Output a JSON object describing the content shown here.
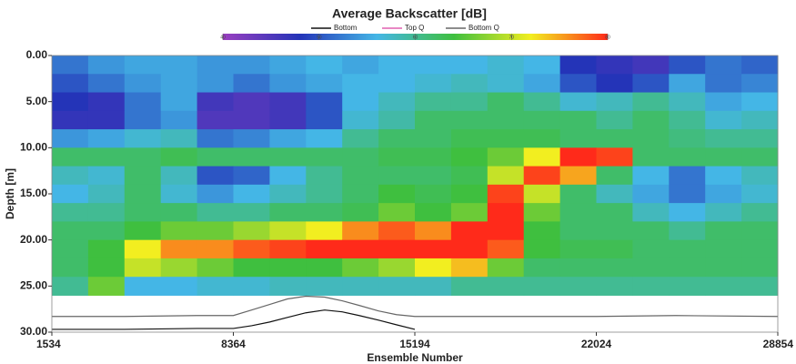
{
  "chart_data": {
    "type": "heatmap",
    "title": "Average Backscatter [dB]",
    "xlabel": "Ensemble Number",
    "ylabel": "Depth [m]",
    "xlim": [
      1534,
      28854
    ],
    "xticks": [
      1534,
      8364,
      15194,
      22024,
      28854
    ],
    "ylim": [
      0,
      30
    ],
    "yticks": [
      {
        "value": 0,
        "label": "0.00"
      },
      {
        "value": 5,
        "label": "5.00"
      },
      {
        "value": 10,
        "label": "10.00"
      },
      {
        "value": 15,
        "label": "15.00"
      },
      {
        "value": 20,
        "label": "20.00"
      },
      {
        "value": 25,
        "label": "25.00"
      },
      {
        "value": 30,
        "label": "30.00"
      }
    ],
    "y_inverted": true,
    "clim": [
      40,
      80
    ],
    "cticks": [
      40,
      50,
      60,
      70,
      80
    ],
    "colormap": [
      "#9a3fc0",
      "#2434b8",
      "#44b6e6",
      "#3fbf3f",
      "#f2ee20",
      "#ff2a1a"
    ],
    "x_edges": [
      1534,
      2900,
      4266,
      5632,
      6998,
      8364,
      9730,
      11096,
      12462,
      13828,
      15194,
      16560,
      17926,
      19292,
      20658,
      22024,
      23390,
      24756,
      26122,
      27488,
      28854
    ],
    "depth_edges": [
      0,
      2,
      4,
      6,
      8,
      10,
      12,
      14,
      16,
      18,
      20,
      22,
      24,
      26
    ],
    "values": [
      [
        52,
        54,
        55,
        55,
        54,
        54,
        55,
        56,
        55,
        56,
        56,
        56,
        57,
        56,
        48,
        47,
        46,
        50,
        52,
        51
      ],
      [
        50,
        52,
        54,
        55,
        54,
        52,
        54,
        55,
        56,
        56,
        57,
        58,
        57,
        55,
        50,
        48,
        50,
        55,
        52,
        53
      ],
      [
        48,
        47,
        52,
        55,
        46,
        45,
        46,
        50,
        56,
        58,
        60,
        60,
        62,
        60,
        57,
        58,
        60,
        58,
        55,
        56
      ],
      [
        47,
        47,
        52,
        54,
        45,
        45,
        46,
        50,
        57,
        59,
        62,
        62,
        62,
        62,
        62,
        60,
        62,
        60,
        57,
        58
      ],
      [
        54,
        55,
        57,
        58,
        52,
        53,
        55,
        56,
        60,
        62,
        62,
        63,
        63,
        63,
        62,
        62,
        62,
        61,
        60,
        60
      ],
      [
        62,
        62,
        62,
        63,
        62,
        62,
        62,
        62,
        62,
        63,
        63,
        64,
        66,
        72,
        80,
        79,
        62,
        62,
        62,
        62
      ],
      [
        58,
        57,
        62,
        58,
        50,
        51,
        56,
        60,
        62,
        62,
        62,
        63,
        70,
        79,
        75,
        62,
        56,
        52,
        56,
        58
      ],
      [
        56,
        58,
        62,
        57,
        54,
        56,
        58,
        60,
        62,
        64,
        63,
        64,
        79,
        70,
        62,
        58,
        55,
        52,
        55,
        57
      ],
      [
        60,
        60,
        62,
        62,
        60,
        60,
        62,
        62,
        63,
        66,
        64,
        66,
        80,
        66,
        62,
        62,
        58,
        56,
        58,
        60
      ],
      [
        62,
        62,
        64,
        66,
        66,
        68,
        70,
        72,
        76,
        78,
        76,
        80,
        80,
        64,
        62,
        62,
        62,
        60,
        62,
        62
      ],
      [
        62,
        64,
        72,
        76,
        76,
        78,
        79,
        80,
        80,
        80,
        80,
        80,
        78,
        64,
        63,
        63,
        62,
        62,
        62,
        62
      ],
      [
        62,
        64,
        70,
        68,
        66,
        64,
        64,
        64,
        66,
        68,
        72,
        74,
        66,
        62,
        62,
        62,
        62,
        62,
        62,
        62
      ],
      [
        60,
        66,
        56,
        56,
        57,
        57,
        58,
        58,
        58,
        58,
        58,
        60,
        60,
        60,
        60,
        60,
        60,
        60,
        60,
        60
      ]
    ],
    "line_x": [
      1534,
      4266,
      6998,
      8364,
      9050,
      9730,
      10400,
      11096,
      11800,
      12462,
      13100,
      13828,
      14500,
      15194,
      16560,
      19292,
      22024,
      25000,
      28854
    ],
    "series": [
      {
        "name": "Bottom",
        "color": "#111111",
        "values": [
          29.7,
          29.7,
          29.6,
          29.6,
          29.3,
          28.9,
          28.4,
          27.9,
          27.6,
          27.8,
          28.2,
          28.7,
          29.2,
          29.7,
          null,
          null,
          null,
          null,
          null
        ]
      },
      {
        "name": "Top Q",
        "color": "#e060b0",
        "values": [
          null,
          null,
          null,
          null,
          null,
          null,
          null,
          null,
          null,
          null,
          null,
          null,
          null,
          null,
          null,
          null,
          null,
          null,
          null
        ]
      },
      {
        "name": "Bottom Q",
        "color": "#666666",
        "values": [
          28.3,
          28.3,
          28.2,
          28.2,
          27.6,
          27.0,
          26.4,
          26.1,
          26.2,
          26.6,
          27.1,
          27.7,
          28.1,
          28.3,
          28.3,
          28.3,
          28.3,
          28.2,
          28.3
        ]
      }
    ]
  }
}
